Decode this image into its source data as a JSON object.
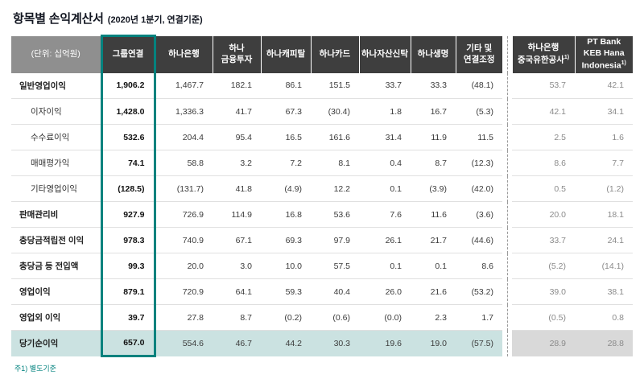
{
  "header": {
    "title": "항목별 손익계산서",
    "subtitle": "(2020년 1분기, 연결기준)"
  },
  "accent": {
    "teal": "#00827e",
    "header_dark": "#3e3e3e",
    "header_gray": "#8f8f8f",
    "highlight_row": "#cbe2e1",
    "highlight_gray": "#d9d9d9",
    "muted_text": "#8a8a8a"
  },
  "table": {
    "unit_label": "(단위: 십억원)",
    "columns": [
      {
        "id": "group-consolidated",
        "lines": [
          "그룹연결"
        ],
        "emphasis": true
      },
      {
        "id": "hana-bank",
        "lines": [
          "하나은행"
        ]
      },
      {
        "id": "hana-financial-investment",
        "lines": [
          "하나",
          "금융투자"
        ]
      },
      {
        "id": "hana-capital",
        "lines": [
          "하나캐피탈"
        ]
      },
      {
        "id": "hana-card",
        "lines": [
          "하나카드"
        ]
      },
      {
        "id": "hana-asset-trust",
        "lines": [
          "하나자산신탁"
        ]
      },
      {
        "id": "hana-life",
        "lines": [
          "하나생명"
        ]
      },
      {
        "id": "others-consolidation-adjustment",
        "lines": [
          "기타 및",
          "연결조정"
        ]
      },
      {
        "id": "hana-bank-china",
        "lines": [
          "하나은행",
          "중국유한공사"
        ],
        "sup": "1)",
        "muted": true,
        "separator_before": true
      },
      {
        "id": "pt-bank-keb-hana-indonesia",
        "lines": [
          "PT Bank",
          "KEB Hana",
          "Indonesia"
        ],
        "sup": "1)",
        "muted": true
      }
    ],
    "rows": [
      {
        "label": "일반영업이익",
        "indent": false,
        "values": [
          "1,906.2",
          "1,467.7",
          "182.1",
          "86.1",
          "151.5",
          "33.7",
          "33.3",
          "(48.1)",
          "53.7",
          "42.1"
        ]
      },
      {
        "label": "이자이익",
        "indent": true,
        "values": [
          "1,428.0",
          "1,336.3",
          "41.7",
          "67.3",
          "(30.4)",
          "1.8",
          "16.7",
          "(5.3)",
          "42.1",
          "34.1"
        ]
      },
      {
        "label": "수수료이익",
        "indent": true,
        "values": [
          "532.6",
          "204.4",
          "95.4",
          "16.5",
          "161.6",
          "31.4",
          "11.9",
          "11.5",
          "2.5",
          "1.6"
        ]
      },
      {
        "label": "매매평가익",
        "indent": true,
        "values": [
          "74.1",
          "58.8",
          "3.2",
          "7.2",
          "8.1",
          "0.4",
          "8.7",
          "(12.3)",
          "8.6",
          "7.7"
        ]
      },
      {
        "label": "기타영업이익",
        "indent": true,
        "values": [
          "(128.5)",
          "(131.7)",
          "41.8",
          "(4.9)",
          "12.2",
          "0.1",
          "(3.9)",
          "(42.0)",
          "0.5",
          "(1.2)"
        ]
      },
      {
        "label": "판매관리비",
        "indent": false,
        "values": [
          "927.9",
          "726.9",
          "114.9",
          "16.8",
          "53.6",
          "7.6",
          "11.6",
          "(3.6)",
          "20.0",
          "18.1"
        ]
      },
      {
        "label": "충당금적립전 이익",
        "indent": false,
        "values": [
          "978.3",
          "740.9",
          "67.1",
          "69.3",
          "97.9",
          "26.1",
          "21.7",
          "(44.6)",
          "33.7",
          "24.1"
        ]
      },
      {
        "label": "충당금 등 전입액",
        "indent": false,
        "values": [
          "99.3",
          "20.0",
          "3.0",
          "10.0",
          "57.5",
          "0.1",
          "0.1",
          "8.6",
          "(5.2)",
          "(14.1)"
        ]
      },
      {
        "label": "영업이익",
        "indent": false,
        "values": [
          "879.1",
          "720.9",
          "64.1",
          "59.3",
          "40.4",
          "26.0",
          "21.6",
          "(53.2)",
          "39.0",
          "38.1"
        ]
      },
      {
        "label": "영업외 이익",
        "indent": false,
        "values": [
          "39.7",
          "27.8",
          "8.7",
          "(0.2)",
          "(0.6)",
          "(0.0)",
          "2.3",
          "1.7",
          "(0.5)",
          "0.8"
        ]
      },
      {
        "label": "당기순이익",
        "indent": false,
        "highlight": true,
        "values": [
          "657.0",
          "554.6",
          "46.7",
          "44.2",
          "30.3",
          "19.6",
          "19.0",
          "(57.5)",
          "28.9",
          "28.8"
        ]
      }
    ]
  },
  "footnote": "주1) 별도기준"
}
